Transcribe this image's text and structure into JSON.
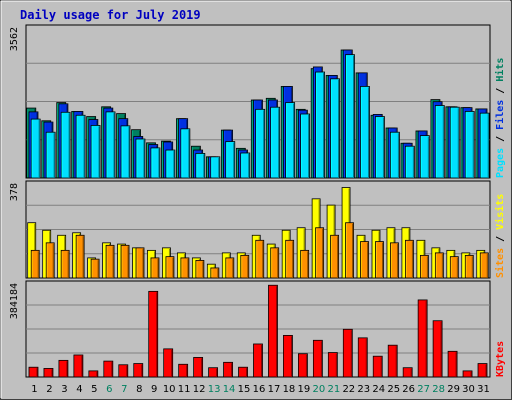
{
  "chart_data": {
    "type": "bar",
    "title": "Daily usage for July 2019",
    "categories": [
      "1",
      "2",
      "3",
      "4",
      "5",
      "6",
      "7",
      "8",
      "9",
      "10",
      "11",
      "12",
      "13",
      "14",
      "15",
      "16",
      "17",
      "18",
      "19",
      "20",
      "21",
      "22",
      "23",
      "24",
      "25",
      "26",
      "27",
      "28",
      "29",
      "30",
      "31"
    ],
    "weekend_days": [
      "6",
      "7",
      "13",
      "14",
      "20",
      "21",
      "27",
      "28"
    ],
    "panels": [
      {
        "name": "hits-files-pages",
        "ymax": 3562,
        "ymax_label": "3562",
        "legend": [
          "Pages",
          "Files",
          "Hits"
        ],
        "legend_colors": [
          "#00e0ff",
          "#0030e0",
          "#008060"
        ],
        "series": [
          {
            "name": "Hits",
            "color": "#008060",
            "values": [
              1650,
              1350,
              1780,
              1570,
              1450,
              1680,
              1520,
              1140,
              830,
              870,
              1400,
              750,
              500,
              1130,
              700,
              1840,
              1880,
              2160,
              1620,
              2580,
              2420,
              3020,
              2480,
              1480,
              1180,
              820,
              1110,
              1850,
              1680,
              1660,
              1630
            ]
          },
          {
            "name": "Files",
            "color": "#0030e0",
            "values": [
              1560,
              1320,
              1750,
              1570,
              1380,
              1650,
              1400,
              980,
              790,
              850,
              1400,
              660,
              500,
              1130,
              660,
              1840,
              1840,
              2160,
              1600,
              2620,
              2420,
              3020,
              2480,
              1500,
              1180,
              820,
              1110,
              1800,
              1680,
              1660,
              1630
            ]
          },
          {
            "name": "Pages",
            "color": "#00e0ff",
            "values": [
              1390,
              1080,
              1550,
              1480,
              1240,
              1560,
              1230,
              920,
              710,
              660,
              1160,
              580,
              500,
              860,
              590,
              1620,
              1670,
              1780,
              1510,
              2500,
              2340,
              2910,
              2160,
              1450,
              1080,
              750,
              1000,
              1710,
              1670,
              1570,
              1530
            ]
          }
        ]
      },
      {
        "name": "visits-sites",
        "ymax": 378,
        "ymax_label": "378",
        "legend": [
          "Sites",
          "Visits"
        ],
        "legend_colors": [
          "#ff9000",
          "#ffff00"
        ],
        "series": [
          {
            "name": "Visits",
            "color": "#ffff00",
            "values": [
              220,
              190,
              170,
              180,
              80,
              140,
              135,
              120,
              110,
              120,
              100,
              80,
              55,
              100,
              100,
              170,
              135,
              190,
              200,
              315,
              290,
              360,
              170,
              190,
              200,
              200,
              150,
              120,
              110,
              100,
              110
            ]
          },
          {
            "name": "Sites",
            "color": "#ff9000",
            "values": [
              110,
              140,
              110,
              170,
              75,
              130,
              130,
              120,
              80,
              85,
              80,
              70,
              40,
              80,
              90,
              150,
              120,
              150,
              110,
              200,
              170,
              220,
              145,
              145,
              140,
              150,
              90,
              100,
              85,
              90,
              100
            ]
          }
        ]
      },
      {
        "name": "kbytes",
        "ymax": 384184,
        "ymax_label": "384184",
        "legend": [
          "KBytes"
        ],
        "legend_colors": [
          "#ff0000"
        ],
        "series": [
          {
            "name": "KBytes",
            "color": "#ff0000",
            "values": [
              40000,
              35000,
              68000,
              90000,
              25000,
              65000,
              50000,
              55000,
              350000,
              115000,
              52000,
              80000,
              38000,
              60000,
              40000,
              135000,
              375000,
              170000,
              95000,
              150000,
              100000,
              195000,
              160000,
              85000,
              130000,
              38000,
              315000,
              230000,
              105000,
              25000,
              55000
            ]
          }
        ]
      }
    ]
  }
}
